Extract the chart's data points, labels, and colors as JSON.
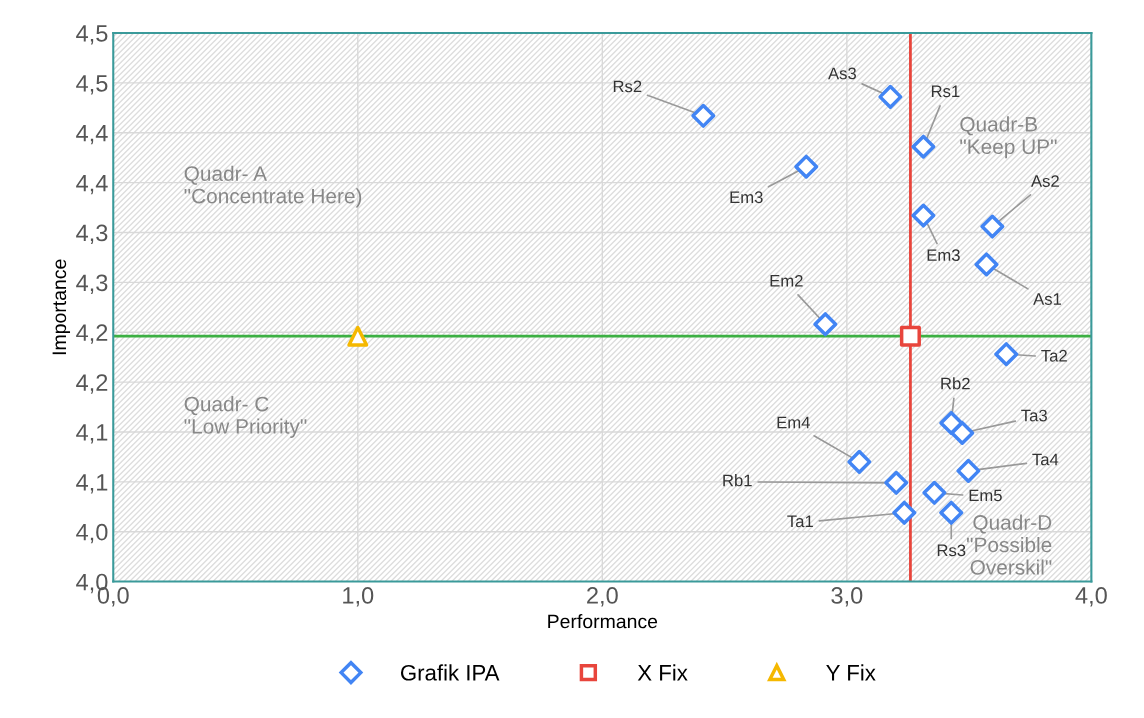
{
  "chart_data": {
    "type": "scatter",
    "xlabel": "Performance",
    "ylabel": "Importance",
    "xlim": [
      0,
      4
    ],
    "xticks": [
      {
        "value": 0,
        "label": "0,0"
      },
      {
        "value": 1,
        "label": "1,0"
      },
      {
        "value": 2,
        "label": "2,0"
      },
      {
        "value": 3,
        "label": "3,0"
      },
      {
        "value": 4,
        "label": "4,0"
      }
    ],
    "ylim": [
      3.95,
      4.5
    ],
    "yticks": [
      {
        "value": 3.95,
        "label": "4,0"
      },
      {
        "value": 4.0,
        "label": "4,0"
      },
      {
        "value": 4.05,
        "label": "4,1"
      },
      {
        "value": 4.1,
        "label": "4,1"
      },
      {
        "value": 4.15,
        "label": "4,2"
      },
      {
        "value": 4.2,
        "label": "4,2"
      },
      {
        "value": 4.25,
        "label": "4,3"
      },
      {
        "value": 4.3,
        "label": "4,3"
      },
      {
        "value": 4.35,
        "label": "4,4"
      },
      {
        "value": 4.4,
        "label": "4,4"
      },
      {
        "value": 4.45,
        "label": "4,5"
      },
      {
        "value": 4.5,
        "label": "4,5"
      }
    ],
    "grid": true,
    "legend": "bottom",
    "series": [
      {
        "name": "Grafik IPA",
        "color": "#4285f4",
        "marker": "diamond",
        "x": [
          2.413,
          3.178,
          3.313,
          2.834,
          3.313,
          3.595,
          3.571,
          2.912,
          3.652,
          3.427,
          3.472,
          3.051,
          3.497,
          3.202,
          3.358,
          3.235,
          3.427
        ],
        "values": [
          4.417,
          4.436,
          4.386,
          4.366,
          4.317,
          4.306,
          4.268,
          4.208,
          4.178,
          4.109,
          4.099,
          4.07,
          4.061,
          4.049,
          4.039,
          4.019,
          4.019
        ]
      },
      {
        "name": "X Fix",
        "color": "#e8453c",
        "marker": "square",
        "x": [
          3.26
        ],
        "values": [
          4.196
        ]
      },
      {
        "name": "Y Fix",
        "color": "#f5b800",
        "marker": "triangle",
        "x": [
          1.0
        ],
        "values": [
          4.196
        ]
      }
    ],
    "ref_lines": [
      {
        "axis": "x",
        "value": 3.26,
        "color": "#e8453c"
      },
      {
        "axis": "y",
        "value": 4.196,
        "color": "#3cb043"
      }
    ],
    "annotations": [
      {
        "text": "Rs2",
        "x": 2.413,
        "y": 4.417
      },
      {
        "text": "As3",
        "x": 3.178,
        "y": 4.436
      },
      {
        "text": "Rs1",
        "x": 3.313,
        "y": 4.386
      },
      {
        "text": "Em3",
        "x": 2.834,
        "y": 4.366
      },
      {
        "text": "Em3",
        "x": 3.313,
        "y": 4.317
      },
      {
        "text": "As2",
        "x": 3.595,
        "y": 4.306
      },
      {
        "text": "As1",
        "x": 3.571,
        "y": 4.268
      },
      {
        "text": "Em2",
        "x": 2.912,
        "y": 4.208
      },
      {
        "text": "Ta2",
        "x": 3.652,
        "y": 4.178
      },
      {
        "text": "Rb2",
        "x": 3.427,
        "y": 4.109
      },
      {
        "text": "Ta3",
        "x": 3.472,
        "y": 4.099
      },
      {
        "text": "Em4",
        "x": 3.051,
        "y": 4.07
      },
      {
        "text": "Ta4",
        "x": 3.497,
        "y": 4.061
      },
      {
        "text": "Rb1",
        "x": 3.202,
        "y": 4.049
      },
      {
        "text": "Em5",
        "x": 3.358,
        "y": 4.039
      },
      {
        "text": "Ta1",
        "x": 3.235,
        "y": 4.019
      },
      {
        "text": "Rs3",
        "x": 3.427,
        "y": 4.019
      },
      "Quadr- A\n\"Concentrate Here)",
      "Quadr-B\n\"Keep UP\"",
      "Quadr- C\n\"Low Priority\"",
      "Quadr-D\n\"Possible\nOverskil\""
    ]
  }
}
